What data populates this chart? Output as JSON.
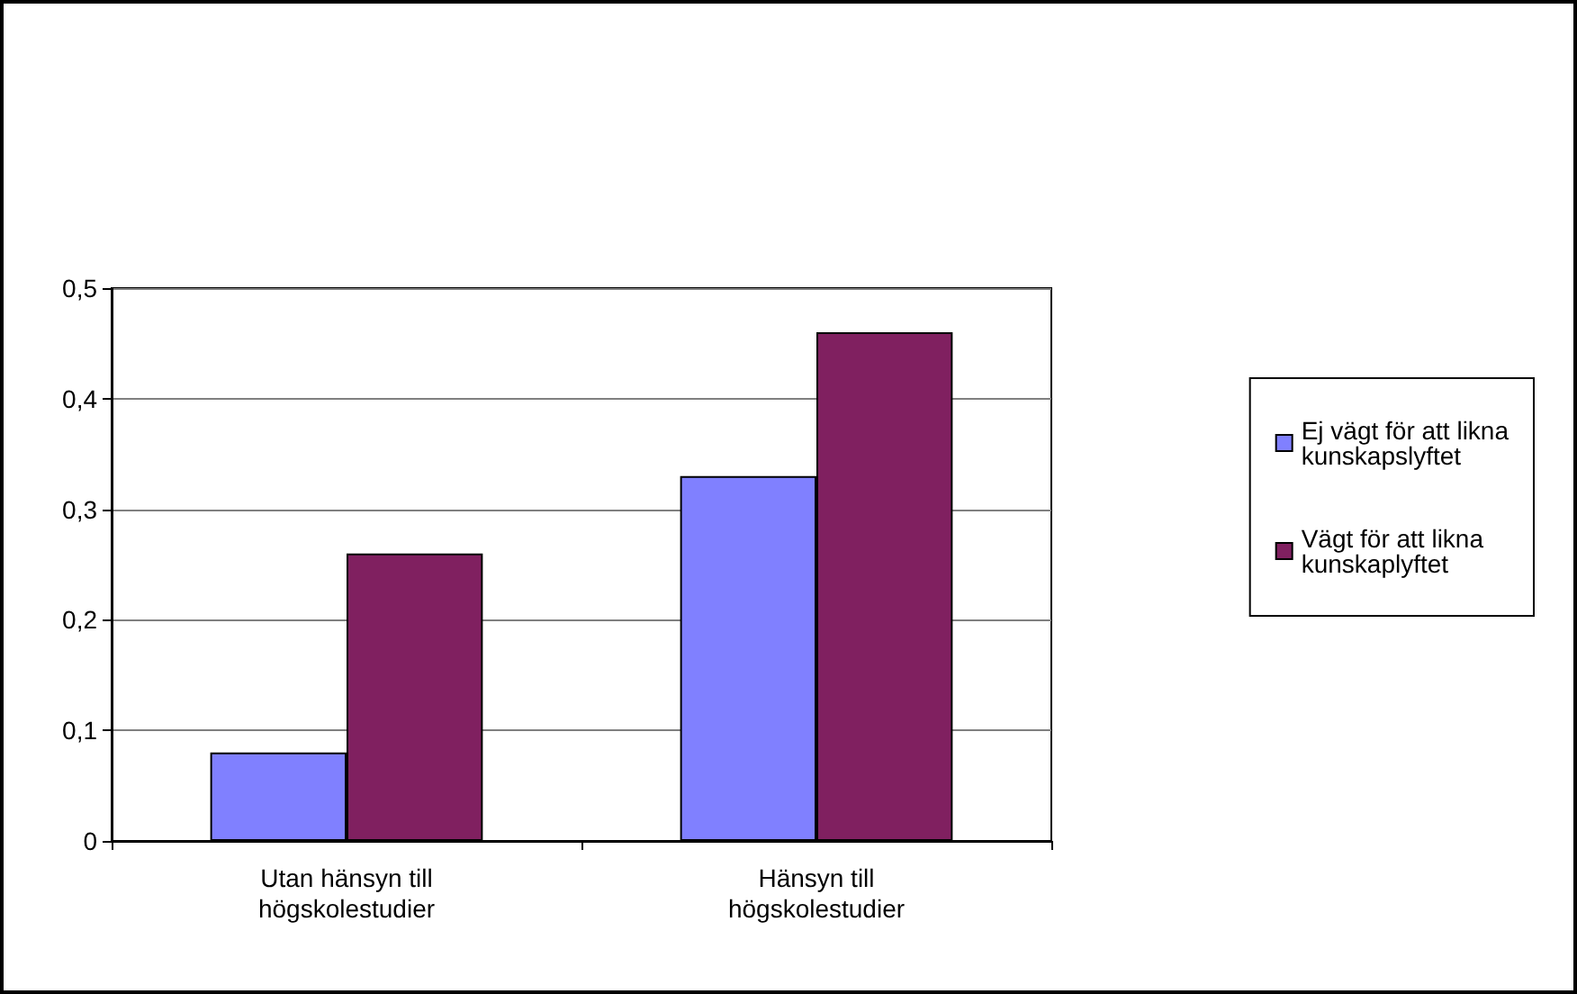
{
  "chart_data": {
    "type": "bar",
    "categories": [
      "Utan hänsyn till\nhögskolestudier",
      "Hänsyn till\nhögskolestudier"
    ],
    "series": [
      {
        "name": "Ej vägt för att likna\nkunskapslyftet",
        "color": "#8080ff",
        "values": [
          0.08,
          0.33
        ]
      },
      {
        "name": "Vägt för att likna\nkunskaplyftet",
        "color": "#802060",
        "values": [
          0.26,
          0.46
        ]
      }
    ],
    "ylim": [
      0,
      0.5
    ],
    "yticks": [
      {
        "value": 0,
        "label": "0"
      },
      {
        "value": 0.1,
        "label": "0,1"
      },
      {
        "value": 0.2,
        "label": "0,2"
      },
      {
        "value": 0.3,
        "label": "0,3"
      },
      {
        "value": 0.4,
        "label": "0,4"
      },
      {
        "value": 0.5,
        "label": "0,5"
      }
    ],
    "grid": "y",
    "legend": "right"
  }
}
